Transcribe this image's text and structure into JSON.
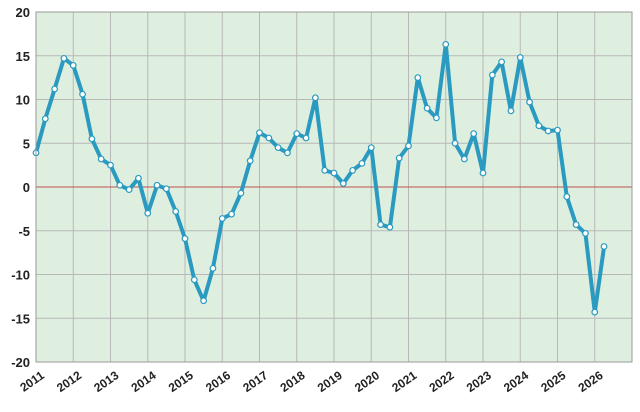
{
  "chart_data": {
    "type": "line",
    "title": "",
    "xlabel": "",
    "ylabel": "",
    "ylim": [
      -20,
      20
    ],
    "xlim": [
      2011,
      2027
    ],
    "y_ticks": [
      "20",
      "15",
      "10",
      "5",
      "0",
      "-5",
      "-10",
      "-15",
      "-20"
    ],
    "x_tick_labels": [
      "2011",
      "2012",
      "2013",
      "2014",
      "2015",
      "2016",
      "2017",
      "2018",
      "2019",
      "2020",
      "2021",
      "2022",
      "2023",
      "2024",
      "2025",
      "2026"
    ],
    "grid": true,
    "zero_line": true,
    "colors": {
      "line": "#2a9ac0",
      "marker_fill": "#ffffff",
      "plot_bg": "#deefdf",
      "grid": "#b8b8b8",
      "zero_line": "#c05050"
    },
    "series": [
      {
        "x": [
          2011.0,
          2011.25,
          2011.5,
          2011.75,
          2012.0,
          2012.25,
          2012.5,
          2012.75,
          2013.0,
          2013.25,
          2013.5,
          2013.75,
          2014.0,
          2014.25,
          2014.5,
          2014.75,
          2015.0,
          2015.25,
          2015.5,
          2015.75,
          2016.0,
          2016.25,
          2016.5,
          2016.75,
          2017.0,
          2017.25,
          2017.5,
          2017.75,
          2018.0,
          2018.25,
          2018.5,
          2018.75,
          2019.0,
          2019.25,
          2019.5,
          2019.75,
          2020.0,
          2020.25,
          2020.5,
          2020.75,
          2021.0,
          2021.25,
          2021.5,
          2021.75,
          2022.0,
          2022.25,
          2022.5,
          2022.75,
          2023.0,
          2023.25,
          2023.5,
          2023.75,
          2024.0,
          2024.25,
          2024.5,
          2024.75,
          2025.0,
          2025.25,
          2025.5,
          2025.75,
          2026.0,
          2026.25
        ],
        "y": [
          3.9,
          7.8,
          11.2,
          14.7,
          13.9,
          10.6,
          5.5,
          3.2,
          2.5,
          0.2,
          -0.3,
          1.0,
          -3.0,
          0.2,
          -0.2,
          -2.8,
          -5.9,
          -10.6,
          -13.0,
          -9.3,
          -3.6,
          -3.1,
          -0.7,
          3.0,
          6.2,
          5.6,
          4.5,
          3.9,
          6.1,
          5.6,
          10.2,
          1.9,
          1.6,
          0.4,
          1.9,
          2.7,
          4.5,
          -4.3,
          -4.6,
          3.3,
          4.7,
          12.5,
          9.0,
          7.9,
          16.3,
          5.0,
          3.2,
          6.1,
          1.6,
          12.8,
          14.3,
          8.7,
          14.8,
          9.7,
          7.0,
          6.4,
          6.5,
          -1.1,
          -4.3,
          -5.3,
          -14.3,
          -6.8
        ]
      }
    ]
  }
}
